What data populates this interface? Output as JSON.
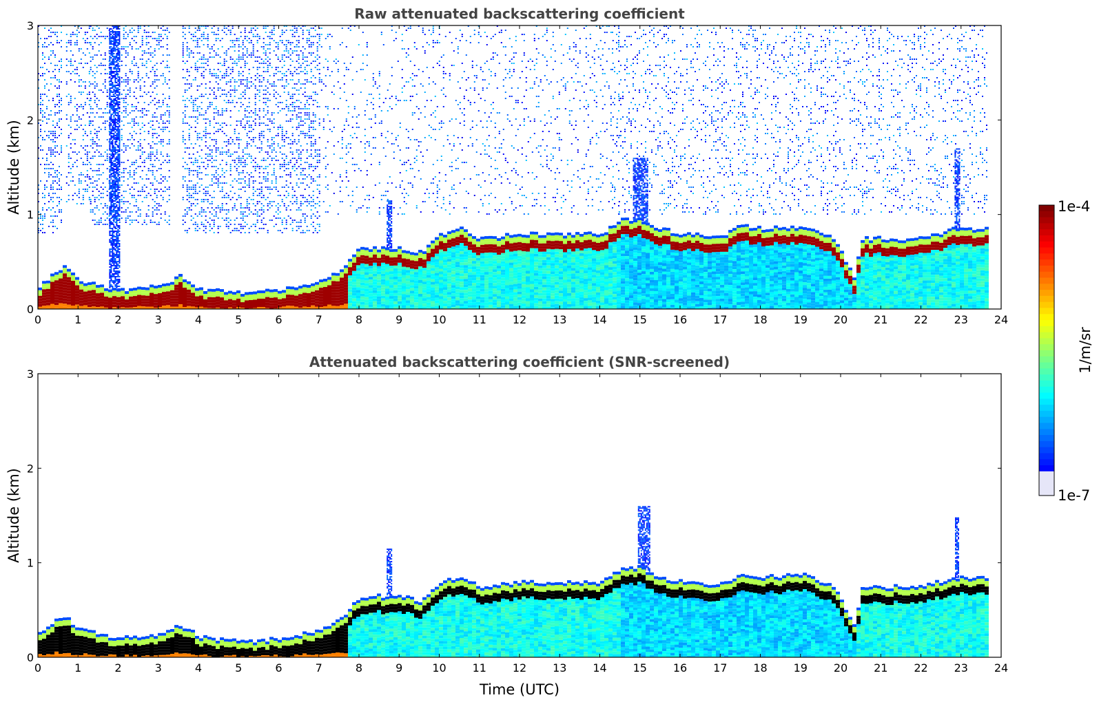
{
  "chart_data": [
    {
      "type": "heatmap",
      "title": "Raw attenuated backscattering coefficient",
      "xlabel": "",
      "ylabel": "Altitude (km)",
      "xlim": [
        0,
        24
      ],
      "ylim": [
        0,
        3
      ],
      "x_ticks": [
        "0",
        "1",
        "2",
        "3",
        "4",
        "5",
        "6",
        "7",
        "8",
        "9",
        "10",
        "11",
        "12",
        "13",
        "14",
        "15",
        "16",
        "17",
        "18",
        "19",
        "20",
        "21",
        "22",
        "23",
        "24"
      ],
      "y_ticks": [
        "0",
        "1",
        "2",
        "3"
      ],
      "data_end_hour": 23.65,
      "noise_regions": [
        {
          "from_hour": 0.0,
          "to_hour": 0.6,
          "from_km": 0.8,
          "to_km": 3.0,
          "density": 0.55
        },
        {
          "from_hour": 0.7,
          "to_hour": 1.3,
          "from_km": 1.1,
          "to_km": 3.0,
          "density": 0.45
        },
        {
          "from_hour": 1.3,
          "to_hour": 3.3,
          "from_km": 0.9,
          "to_km": 3.0,
          "density": 0.55
        },
        {
          "from_hour": 3.6,
          "to_hour": 7.0,
          "from_km": 0.8,
          "to_km": 3.0,
          "density": 0.6
        },
        {
          "from_hour": 7.0,
          "to_hour": 14.5,
          "from_km": 1.0,
          "to_km": 3.0,
          "density": 0.18
        },
        {
          "from_hour": 14.3,
          "to_hour": 23.65,
          "from_km": 1.0,
          "to_km": 3.0,
          "density": 0.25
        }
      ],
      "boundary_layer_top_km": [
        {
          "hour": 0,
          "value": 0.25
        },
        {
          "hour": 0.6,
          "value": 0.45
        },
        {
          "hour": 1.0,
          "value": 0.3
        },
        {
          "hour": 2,
          "value": 0.2
        },
        {
          "hour": 3,
          "value": 0.25
        },
        {
          "hour": 3.5,
          "value": 0.35
        },
        {
          "hour": 4,
          "value": 0.22
        },
        {
          "hour": 5,
          "value": 0.17
        },
        {
          "hour": 6,
          "value": 0.2
        },
        {
          "hour": 7,
          "value": 0.3
        },
        {
          "hour": 7.6,
          "value": 0.45
        },
        {
          "hour": 8,
          "value": 0.65
        },
        {
          "hour": 9,
          "value": 0.65
        },
        {
          "hour": 9.5,
          "value": 0.6
        },
        {
          "hour": 10,
          "value": 0.8
        },
        {
          "hour": 10.5,
          "value": 0.85
        },
        {
          "hour": 11,
          "value": 0.75
        },
        {
          "hour": 12,
          "value": 0.8
        },
        {
          "hour": 13,
          "value": 0.8
        },
        {
          "hour": 14,
          "value": 0.8
        },
        {
          "hour": 14.5,
          "value": 0.95
        },
        {
          "hour": 15,
          "value": 0.95
        },
        {
          "hour": 15.5,
          "value": 0.85
        },
        {
          "hour": 16,
          "value": 0.8
        },
        {
          "hour": 17,
          "value": 0.78
        },
        {
          "hour": 17.5,
          "value": 0.9
        },
        {
          "hour": 18,
          "value": 0.85
        },
        {
          "hour": 19,
          "value": 0.88
        },
        {
          "hour": 19.8,
          "value": 0.75
        },
        {
          "hour": 20.3,
          "value": 0.35
        },
        {
          "hour": 20.5,
          "value": 0.75
        },
        {
          "hour": 21,
          "value": 0.75
        },
        {
          "hour": 22,
          "value": 0.75
        },
        {
          "hour": 22.8,
          "value": 0.85
        },
        {
          "hour": 23.65,
          "value": 0.85
        }
      ],
      "plumes": [
        {
          "hour": 1.9,
          "width_h": 0.25,
          "top_km": 3.0
        },
        {
          "hour": 8.75,
          "width_h": 0.12,
          "top_km": 1.15
        },
        {
          "hour": 15.0,
          "width_h": 0.35,
          "top_km": 1.6
        },
        {
          "hour": 22.9,
          "width_h": 0.12,
          "top_km": 1.7
        }
      ]
    },
    {
      "type": "heatmap",
      "title": "Attenuated backscattering coefficient (SNR-screened)",
      "xlabel": "Time (UTC)",
      "ylabel": "Altitude (km)",
      "xlim": [
        0,
        24
      ],
      "ylim": [
        0,
        3
      ],
      "x_ticks": [
        "0",
        "1",
        "2",
        "3",
        "4",
        "5",
        "6",
        "7",
        "8",
        "9",
        "10",
        "11",
        "12",
        "13",
        "14",
        "15",
        "16",
        "17",
        "18",
        "19",
        "20",
        "21",
        "22",
        "23",
        "24"
      ],
      "y_ticks": [
        "0",
        "1",
        "2",
        "3"
      ],
      "data_end_hour": 23.65,
      "saturated_color": "#000000",
      "plumes": [
        {
          "hour": 8.75,
          "width_h": 0.12,
          "top_km": 1.15
        },
        {
          "hour": 15.1,
          "width_h": 0.3,
          "top_km": 1.6
        },
        {
          "hour": 22.9,
          "width_h": 0.1,
          "top_km": 1.48
        }
      ]
    }
  ],
  "colorbar": {
    "max_label": "1e-4",
    "min_label": "1e-7",
    "unit_label": "1/m/sr",
    "colormap": "jet",
    "low_end_color": "#e6e6f8"
  }
}
